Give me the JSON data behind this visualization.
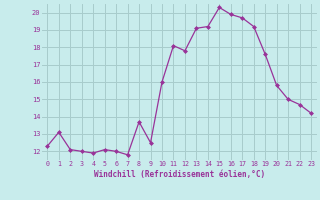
{
  "x": [
    0,
    1,
    2,
    3,
    4,
    5,
    6,
    7,
    8,
    9,
    10,
    11,
    12,
    13,
    14,
    15,
    16,
    17,
    18,
    19,
    20,
    21,
    22,
    23
  ],
  "y": [
    12.3,
    13.1,
    12.1,
    12.0,
    11.9,
    12.1,
    12.0,
    11.8,
    13.7,
    12.5,
    16.0,
    18.1,
    17.8,
    19.1,
    19.2,
    20.3,
    19.9,
    19.7,
    19.2,
    17.6,
    15.8,
    15.0,
    14.7,
    14.2
  ],
  "xlabel": "Windchill (Refroidissement éolien,°C)",
  "ylim": [
    11.5,
    20.5
  ],
  "xlim": [
    -0.5,
    23.5
  ],
  "yticks": [
    12,
    13,
    14,
    15,
    16,
    17,
    18,
    19,
    20
  ],
  "xticks": [
    0,
    1,
    2,
    3,
    4,
    5,
    6,
    7,
    8,
    9,
    10,
    11,
    12,
    13,
    14,
    15,
    16,
    17,
    18,
    19,
    20,
    21,
    22,
    23
  ],
  "line_color": "#993399",
  "marker_color": "#993399",
  "bg_color": "#c8ecec",
  "grid_color": "#a8cccc",
  "label_color": "#993399",
  "tick_color": "#993399"
}
